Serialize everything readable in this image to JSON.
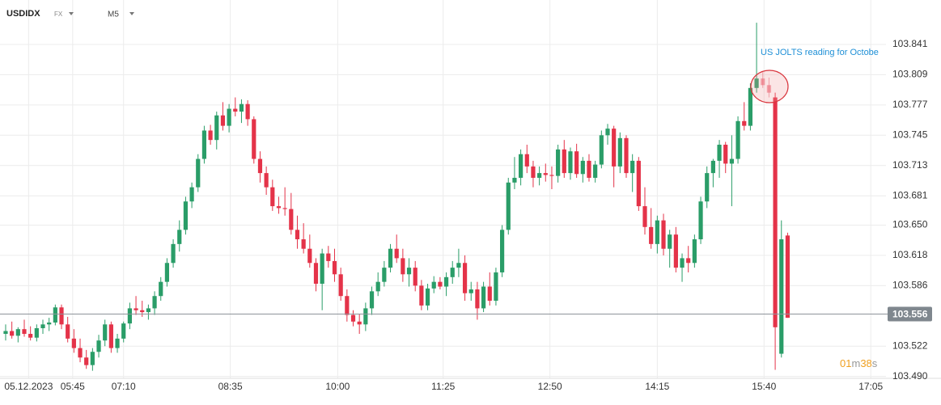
{
  "chart_data": {
    "type": "candlestick",
    "symbol": "USDIDX",
    "market": "FX",
    "interval": "M5",
    "annotation": "US JOLTS reading for Octobe",
    "current_price": 103.556,
    "current_price_label": "103.556",
    "timer": {
      "minutes": "01",
      "minutes_unit": "m",
      "seconds": "38",
      "seconds_unit": "s"
    },
    "up_color": "#2a9d68",
    "down_color": "#e43349",
    "grid": true,
    "ylim": [
      103.488,
      103.888
    ],
    "yticks": [
      {
        "value": 103.49,
        "label": "103.490"
      },
      103.522,
      103.586,
      103.618,
      {
        "value": 103.65,
        "label": "103.650"
      },
      103.681,
      103.713,
      103.745,
      103.777,
      103.809,
      103.841
    ],
    "xlim": [
      -0.91,
      141.85
    ],
    "xticks": [
      {
        "value": 3.7,
        "label": "05.12.2023"
      },
      {
        "value": 10.8,
        "label": "05:45"
      },
      {
        "value": 19,
        "label": "07:10"
      },
      {
        "value": 36.2,
        "label": "08:35"
      },
      {
        "value": 53.5,
        "label": "10:00"
      },
      {
        "value": 70.5,
        "label": "11:25"
      },
      {
        "value": 87.7,
        "label": "12:50"
      },
      {
        "value": 105,
        "label": "14:15"
      },
      {
        "value": 122.2,
        "label": "15:40"
      },
      {
        "value": 139.4,
        "label": "17:05"
      }
    ],
    "candles": [
      [
        103.535,
        103.545,
        103.528,
        103.538
      ],
      [
        103.538,
        103.548,
        103.53,
        103.533
      ],
      [
        103.533,
        103.542,
        103.526,
        103.54
      ],
      [
        103.54,
        103.55,
        103.532,
        103.535
      ],
      [
        103.535,
        103.543,
        103.528,
        103.531
      ],
      [
        103.531,
        103.545,
        103.527,
        103.541
      ],
      [
        103.541,
        103.55,
        103.535,
        103.545
      ],
      [
        103.545,
        103.552,
        103.538,
        103.547
      ],
      [
        103.547,
        103.566,
        103.544,
        103.563
      ],
      [
        103.563,
        103.566,
        103.54,
        103.545
      ],
      [
        103.545,
        103.553,
        103.526,
        103.53
      ],
      [
        103.53,
        103.54,
        103.515,
        103.52
      ],
      [
        103.52,
        103.53,
        103.505,
        103.51
      ],
      [
        103.51,
        103.518,
        103.498,
        103.502
      ],
      [
        103.502,
        103.52,
        103.496,
        103.516
      ],
      [
        103.516,
        103.534,
        103.51,
        103.528
      ],
      [
        103.528,
        103.55,
        103.522,
        103.545
      ],
      [
        103.545,
        103.548,
        103.515,
        103.52
      ],
      [
        103.52,
        103.535,
        103.515,
        103.53
      ],
      [
        103.53,
        103.548,
        103.526,
        103.546
      ],
      [
        103.546,
        103.568,
        103.54,
        103.562
      ],
      [
        103.562,
        103.575,
        103.555,
        103.56
      ],
      [
        103.56,
        103.57,
        103.553,
        103.558
      ],
      [
        103.558,
        103.566,
        103.55,
        103.562
      ],
      [
        103.562,
        103.58,
        103.555,
        103.575
      ],
      [
        103.575,
        103.595,
        103.57,
        103.59
      ],
      [
        103.59,
        103.615,
        103.585,
        103.61
      ],
      [
        103.61,
        103.635,
        103.605,
        103.63
      ],
      [
        103.63,
        103.655,
        103.622,
        103.645
      ],
      [
        103.645,
        103.68,
        103.64,
        103.675
      ],
      [
        103.675,
        103.695,
        103.668,
        103.69
      ],
      [
        103.69,
        103.725,
        103.685,
        103.72
      ],
      [
        103.72,
        103.755,
        103.715,
        103.75
      ],
      [
        103.75,
        103.756,
        103.735,
        103.74
      ],
      [
        103.74,
        103.77,
        103.73,
        103.766
      ],
      [
        103.766,
        103.78,
        103.75,
        103.755
      ],
      [
        103.755,
        103.778,
        103.748,
        103.773
      ],
      [
        103.773,
        103.785,
        103.765,
        103.77
      ],
      [
        103.77,
        103.783,
        103.758,
        103.778
      ],
      [
        103.778,
        103.782,
        103.755,
        103.762
      ],
      [
        103.762,
        103.765,
        103.715,
        103.72
      ],
      [
        103.72,
        103.728,
        103.695,
        103.705
      ],
      [
        103.705,
        103.712,
        103.682,
        103.69
      ],
      [
        103.69,
        103.698,
        103.665,
        103.67
      ],
      [
        103.67,
        103.68,
        103.662,
        103.668
      ],
      [
        103.668,
        103.69,
        103.66,
        103.667
      ],
      [
        103.667,
        103.684,
        103.64,
        103.645
      ],
      [
        103.645,
        103.66,
        103.625,
        103.635
      ],
      [
        103.635,
        103.652,
        103.62,
        103.625
      ],
      [
        103.625,
        103.64,
        103.605,
        103.61
      ],
      [
        103.61,
        103.615,
        103.58,
        103.588
      ],
      [
        103.588,
        103.625,
        103.56,
        103.62
      ],
      [
        103.62,
        103.628,
        103.605,
        103.612
      ],
      [
        103.612,
        103.625,
        103.59,
        103.598
      ],
      [
        103.598,
        103.605,
        103.57,
        103.575
      ],
      [
        103.575,
        103.582,
        103.548,
        103.555
      ],
      [
        103.555,
        103.56,
        103.543,
        103.548
      ],
      [
        103.548,
        103.556,
        103.535,
        103.545
      ],
      [
        103.545,
        103.568,
        103.538,
        103.562
      ],
      [
        103.562,
        103.585,
        103.555,
        103.58
      ],
      [
        103.58,
        103.6,
        103.575,
        103.59
      ],
      [
        103.59,
        103.612,
        103.585,
        103.605
      ],
      [
        103.605,
        103.63,
        103.6,
        103.625
      ],
      [
        103.625,
        103.64,
        103.61,
        103.615
      ],
      [
        103.615,
        103.625,
        103.59,
        103.598
      ],
      [
        103.598,
        103.615,
        103.585,
        103.605
      ],
      [
        103.605,
        103.612,
        103.58,
        103.586
      ],
      [
        103.586,
        103.592,
        103.56,
        103.565
      ],
      [
        103.565,
        103.588,
        103.56,
        103.583
      ],
      [
        103.583,
        103.596,
        103.578,
        103.59
      ],
      [
        103.59,
        103.595,
        103.582,
        103.585
      ],
      [
        103.585,
        103.6,
        103.575,
        103.595
      ],
      [
        103.595,
        103.612,
        103.588,
        103.605
      ],
      [
        103.605,
        103.625,
        103.595,
        103.61
      ],
      [
        103.61,
        103.618,
        103.57,
        103.578
      ],
      [
        103.578,
        103.59,
        103.57,
        103.582
      ],
      [
        103.582,
        103.59,
        103.55,
        103.562
      ],
      [
        103.562,
        103.59,
        103.558,
        103.585
      ],
      [
        103.585,
        103.6,
        103.565,
        103.57
      ],
      [
        103.57,
        103.605,
        103.565,
        103.6
      ],
      [
        103.6,
        103.65,
        103.595,
        103.645
      ],
      [
        103.645,
        103.7,
        103.64,
        103.695
      ],
      [
        103.695,
        103.722,
        103.688,
        103.7
      ],
      [
        103.7,
        103.73,
        103.692,
        103.725
      ],
      [
        103.725,
        103.735,
        103.705,
        103.712
      ],
      [
        103.712,
        103.718,
        103.69,
        103.7
      ],
      [
        103.7,
        103.712,
        103.692,
        103.705
      ],
      [
        103.705,
        103.715,
        103.696,
        103.703
      ],
      [
        103.703,
        103.712,
        103.688,
        103.702
      ],
      [
        103.702,
        103.735,
        103.695,
        103.73
      ],
      [
        103.73,
        103.74,
        103.7,
        103.705
      ],
      [
        103.705,
        103.732,
        103.698,
        103.728
      ],
      [
        103.728,
        103.736,
        103.7,
        103.704
      ],
      [
        103.704,
        103.722,
        103.695,
        103.718
      ],
      [
        103.718,
        103.725,
        103.696,
        103.7
      ],
      [
        103.7,
        103.718,
        103.695,
        103.714
      ],
      [
        103.714,
        103.75,
        103.71,
        103.745
      ],
      [
        103.745,
        103.757,
        103.735,
        103.752
      ],
      [
        103.752,
        103.755,
        103.69,
        103.712
      ],
      [
        103.712,
        103.748,
        103.705,
        103.742
      ],
      [
        103.742,
        103.745,
        103.7,
        103.705
      ],
      [
        103.705,
        103.725,
        103.685,
        103.718
      ],
      [
        103.718,
        103.722,
        103.665,
        103.67
      ],
      [
        103.67,
        103.69,
        103.64,
        103.648
      ],
      [
        103.648,
        103.668,
        103.625,
        103.63
      ],
      [
        103.63,
        103.66,
        103.62,
        103.655
      ],
      [
        103.655,
        103.662,
        103.618,
        103.625
      ],
      [
        103.625,
        103.645,
        103.605,
        103.64
      ],
      [
        103.64,
        103.648,
        103.6,
        103.605
      ],
      [
        103.605,
        103.62,
        103.59,
        103.615
      ],
      [
        103.615,
        103.628,
        103.6,
        103.61
      ],
      [
        103.61,
        103.64,
        103.605,
        103.635
      ],
      [
        103.635,
        103.68,
        103.63,
        103.675
      ],
      [
        103.675,
        103.712,
        103.668,
        103.705
      ],
      [
        103.705,
        103.72,
        103.69,
        103.718
      ],
      [
        103.718,
        103.74,
        103.7,
        103.735
      ],
      [
        103.735,
        103.738,
        103.705,
        103.715
      ],
      [
        103.715,
        103.745,
        103.67,
        103.72
      ],
      [
        103.72,
        103.765,
        103.715,
        103.76
      ],
      [
        103.76,
        103.78,
        103.75,
        103.755
      ],
      [
        103.755,
        103.8,
        103.75,
        103.795
      ],
      [
        103.795,
        103.864,
        103.79,
        103.805
      ],
      [
        103.805,
        103.812,
        103.795,
        103.798
      ],
      [
        103.798,
        103.806,
        103.785,
        103.79
      ],
      [
        103.785,
        103.79,
        103.497,
        103.542
      ],
      [
        103.514,
        103.655,
        103.51,
        103.635
      ],
      [
        103.639,
        103.642,
        103.552,
        103.552
      ]
    ]
  }
}
